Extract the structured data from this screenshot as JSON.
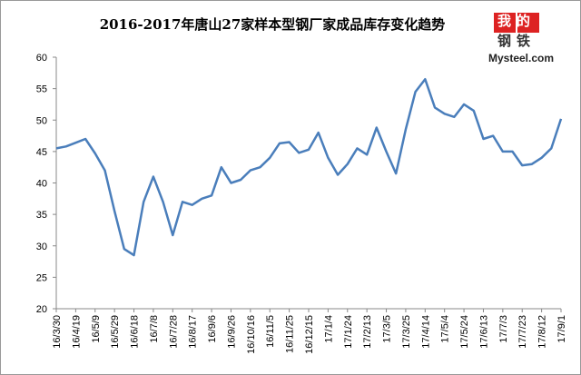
{
  "chart_data": {
    "type": "line",
    "title": "2016-2017年唐山27家样本型钢厂家成品库存变化趋势",
    "logo": {
      "top": "我的",
      "bottom": "钢铁",
      "site": "Mysteel.com"
    },
    "categories": [
      "16/3/30",
      null,
      "16/4/19",
      null,
      "16/5/9",
      null,
      "16/5/29",
      null,
      "16/6/18",
      null,
      "16/7/8",
      null,
      "16/7/28",
      null,
      "16/8/17",
      null,
      "16/9/6",
      null,
      "16/9/26",
      null,
      "16/10/16",
      null,
      "16/11/5",
      null,
      "16/11/25",
      null,
      "16/12/15",
      null,
      "17/1/4",
      null,
      "17/1/24",
      null,
      "17/2/13",
      null,
      "17/3/5",
      null,
      "17/3/25",
      null,
      "17/4/14",
      null,
      "17/5/4",
      null,
      "17/5/24",
      null,
      "17/6/13",
      null,
      "17/7/3",
      null,
      "17/7/23",
      null,
      "17/8/12",
      null,
      "17/9/1"
    ],
    "series": [
      {
        "color": "#4a7ebb",
        "values": [
          45.5,
          45.8,
          46.4,
          47,
          44.7,
          42,
          35.5,
          29.5,
          28.5,
          37,
          41,
          37,
          31.7,
          37,
          36.5,
          37.5,
          38,
          42.5,
          40,
          40.5,
          42,
          42.5,
          44,
          46.3,
          46.5,
          44.8,
          45.3,
          48,
          44,
          41.3,
          43,
          45.5,
          44.5,
          48.8,
          45,
          41.5,
          48.5,
          54.5,
          56.5,
          52,
          51,
          50.5,
          52.5,
          51.5,
          47,
          47.5,
          45,
          45,
          42.8,
          43,
          44,
          45.5,
          50.2
        ]
      }
    ],
    "ylim": [
      20,
      60
    ],
    "yticks": [
      20,
      25,
      30,
      35,
      40,
      45,
      50,
      55,
      60
    ],
    "grid": false
  }
}
